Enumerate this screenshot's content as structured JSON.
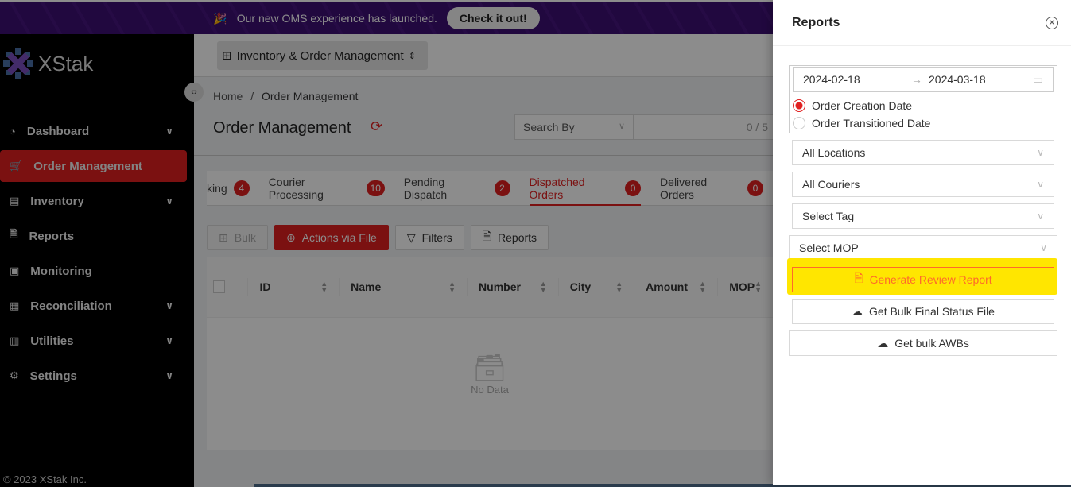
{
  "banner": {
    "icon": "party-popper-icon",
    "text": "Our new OMS experience has launched.",
    "cta": "Check it out!"
  },
  "sidebar": {
    "logo": "XStak",
    "items": [
      {
        "label": "Dashboard",
        "icon": "dashboard-icon",
        "chevron": true
      },
      {
        "label": "Order Management",
        "icon": "cart-icon",
        "chevron": false,
        "active": true
      },
      {
        "label": "Inventory",
        "icon": "inventory-icon",
        "chevron": true
      },
      {
        "label": "Reports",
        "icon": "file-icon",
        "chevron": false
      },
      {
        "label": "Monitoring",
        "icon": "monitor-icon",
        "chevron": false
      },
      {
        "label": "Reconciliation",
        "icon": "reconcile-icon",
        "chevron": true
      },
      {
        "label": "Utilities",
        "icon": "utilities-icon",
        "chevron": true
      },
      {
        "label": "Settings",
        "icon": "gear-icon",
        "chevron": true
      }
    ],
    "footer": "© 2023 XStak Inc."
  },
  "header": {
    "app_selector": "Inventory & Order Management"
  },
  "breadcrumb": {
    "home": "Home",
    "sep": "/",
    "current": "Order Management"
  },
  "page": {
    "title": "Order Management",
    "search_by": "Search By",
    "search_count": "0 / 5"
  },
  "tabs": [
    {
      "label": "king",
      "count": "4"
    },
    {
      "label": "Courier Processing",
      "count": "10"
    },
    {
      "label": "Pending Dispatch",
      "count": "2"
    },
    {
      "label": "Dispatched Orders",
      "count": "0",
      "active": true
    },
    {
      "label": "Delivered Orders",
      "count": "0"
    }
  ],
  "toolbar": {
    "bulk": "Bulk",
    "actions": "Actions via File",
    "filters": "Filters",
    "reports": "Reports"
  },
  "table": {
    "columns": [
      "ID",
      "Name",
      "Number",
      "City",
      "Amount",
      "MOP"
    ],
    "empty": "No Data"
  },
  "drawer": {
    "title": "Reports",
    "date_from": "2024-02-18",
    "date_to": "2024-03-18",
    "arrow": "→",
    "radios": [
      {
        "label": "Order Creation Date",
        "checked": true
      },
      {
        "label": "Order Transitioned Date",
        "checked": false
      }
    ],
    "locations": "All Locations",
    "couriers": "All Couriers",
    "tag": "Select Tag",
    "mop": "Select MOP",
    "generate": "Generate Review Report",
    "bulk_status": "Get Bulk Final Status File",
    "bulk_awbs": "Get bulk AWBs"
  },
  "colors": {
    "accent": "#e02020",
    "highlight": "#ffe600",
    "banner": "#3d0f73"
  }
}
